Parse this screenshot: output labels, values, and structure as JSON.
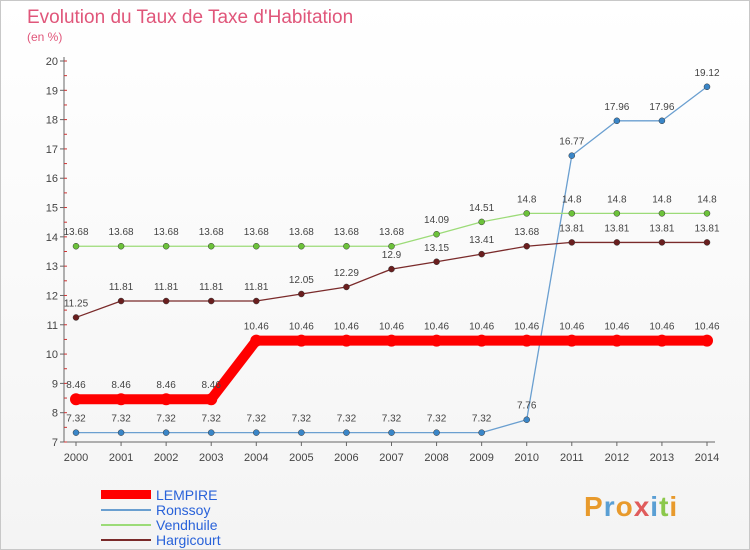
{
  "title": "Evolution du Taux de Taxe d'Habitation",
  "subtitle": "(en %)",
  "brand": {
    "letters": [
      "P",
      "r",
      "o",
      "x",
      "i",
      "t",
      "i"
    ],
    "colors": [
      "#e89a2c",
      "#5a9fd4",
      "#e89a2c",
      "#e05c5c",
      "#5a9fd4",
      "#8cc84b",
      "#e89a2c"
    ]
  },
  "chart_data": {
    "type": "line",
    "x": [
      "2000",
      "2001",
      "2002",
      "2003",
      "2004",
      "2005",
      "2006",
      "2007",
      "2008",
      "2009",
      "2010",
      "2011",
      "2012",
      "2013",
      "2014"
    ],
    "ylim": [
      7,
      20
    ],
    "yticks": [
      7,
      8,
      9,
      10,
      11,
      12,
      13,
      14,
      15,
      16,
      17,
      18,
      19,
      20
    ],
    "grid": false,
    "legend_position": "bottom-left",
    "series": [
      {
        "name": "LEMPIRE",
        "color": "#ff0000",
        "width": 10,
        "values": [
          8.46,
          8.46,
          8.46,
          8.46,
          10.46,
          10.46,
          10.46,
          10.46,
          10.46,
          10.46,
          10.46,
          10.46,
          10.46,
          10.46,
          10.46
        ],
        "labels": [
          "8.46",
          "8.46",
          "8.46",
          "8.46",
          "10.46",
          "10.46",
          "10.46",
          "10.46",
          "10.46",
          "10.46",
          "10.46",
          "10.46",
          "10.46",
          "10.46",
          "10.46"
        ]
      },
      {
        "name": "Ronssoy",
        "color": "#6a9fd0",
        "dot": "#3a86c8",
        "width": 1.3,
        "values": [
          7.32,
          7.32,
          7.32,
          7.32,
          7.32,
          7.32,
          7.32,
          7.32,
          7.32,
          7.32,
          7.76,
          16.77,
          17.96,
          17.96,
          19.12
        ],
        "labels": [
          "7.32",
          "7.32",
          "7.32",
          "7.32",
          "7.32",
          "7.32",
          "7.32",
          "7.32",
          "7.32",
          "7.32",
          "7.76",
          "16.77",
          "17.96",
          "17.96",
          "19.12"
        ]
      },
      {
        "name": "Vendhuile",
        "color": "#9cdb78",
        "dot": "#6cc23a",
        "width": 1.3,
        "values": [
          13.68,
          13.68,
          13.68,
          13.68,
          13.68,
          13.68,
          13.68,
          13.68,
          14.09,
          14.51,
          14.8,
          14.8,
          14.8,
          14.8,
          14.8
        ],
        "labels": [
          "13.68",
          "13.68",
          "13.68",
          "13.68",
          "13.68",
          "13.68",
          "13.68",
          "13.68",
          "14.09",
          "14.51",
          "14.8",
          "14.8",
          "14.8",
          "14.8",
          "14.8"
        ]
      },
      {
        "name": "Hargicourt",
        "color": "#7a2a2a",
        "dot": "#6a1e1e",
        "width": 1.3,
        "values": [
          11.25,
          11.81,
          11.81,
          11.81,
          11.81,
          12.05,
          12.29,
          12.9,
          13.15,
          13.41,
          13.68,
          13.81,
          13.81,
          13.81,
          13.81
        ],
        "labels": [
          "11.25",
          "11.81",
          "11.81",
          "11.81",
          "11.81",
          "12.05",
          "12.29",
          "12.9",
          "13.15",
          "13.41",
          "13.68",
          "13.81",
          "13.81",
          "13.81",
          "13.81"
        ]
      }
    ]
  },
  "legend_series_order": [
    0,
    1,
    2,
    3
  ]
}
